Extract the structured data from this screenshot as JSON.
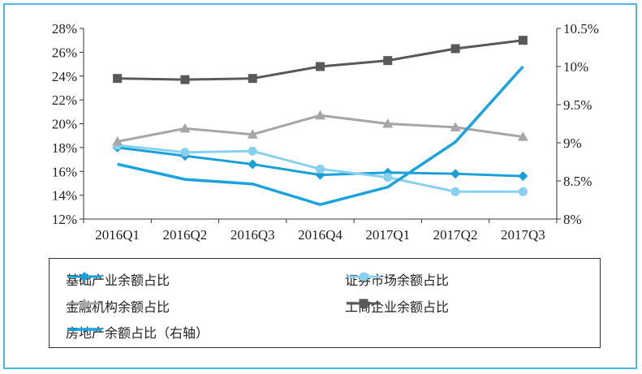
{
  "chart_data": {
    "type": "line",
    "categories": [
      "2016Q1",
      "2016Q2",
      "2016Q3",
      "2016Q4",
      "2017Q1",
      "2017Q2",
      "2017Q3"
    ],
    "y_left": {
      "ylim": [
        12,
        28
      ],
      "ticks": [
        "12%",
        "14%",
        "16%",
        "18%",
        "20%",
        "22%",
        "24%",
        "26%",
        "28%"
      ]
    },
    "y_right": {
      "ylim": [
        8,
        10.5
      ],
      "ticks": [
        "8%",
        "8.5%",
        "9%",
        "9.5%",
        "10%",
        "10.5%"
      ]
    },
    "series": [
      {
        "name": "基础产业余额占比",
        "axis": "left",
        "color": "#1a9fd8",
        "marker": "diamond",
        "values": [
          18.0,
          17.3,
          16.6,
          15.7,
          15.9,
          15.8,
          15.6
        ]
      },
      {
        "name": "证券市场余额占比",
        "axis": "left",
        "color": "#88d0f0",
        "marker": "circle",
        "values": [
          18.2,
          17.6,
          17.7,
          16.2,
          15.5,
          14.3,
          14.3
        ]
      },
      {
        "name": "金融机构余额占比",
        "axis": "left",
        "color": "#a6a6a6",
        "marker": "triangle",
        "values": [
          18.5,
          19.6,
          19.1,
          20.7,
          20.0,
          19.7,
          18.9
        ]
      },
      {
        "name": "工商企业余额占比",
        "axis": "left",
        "color": "#595959",
        "marker": "square",
        "values": [
          23.8,
          23.7,
          23.8,
          24.8,
          25.3,
          26.3,
          27.0
        ]
      },
      {
        "name": "房地产余额占比（右轴）",
        "axis": "right",
        "color": "#1aa3dc",
        "marker": "none",
        "values": [
          8.72,
          8.52,
          8.46,
          8.19,
          8.42,
          9.01,
          10.0
        ]
      }
    ],
    "legend_position": "bottom",
    "grid": false,
    "title": "",
    "xlabel": "",
    "ylabel": ""
  }
}
